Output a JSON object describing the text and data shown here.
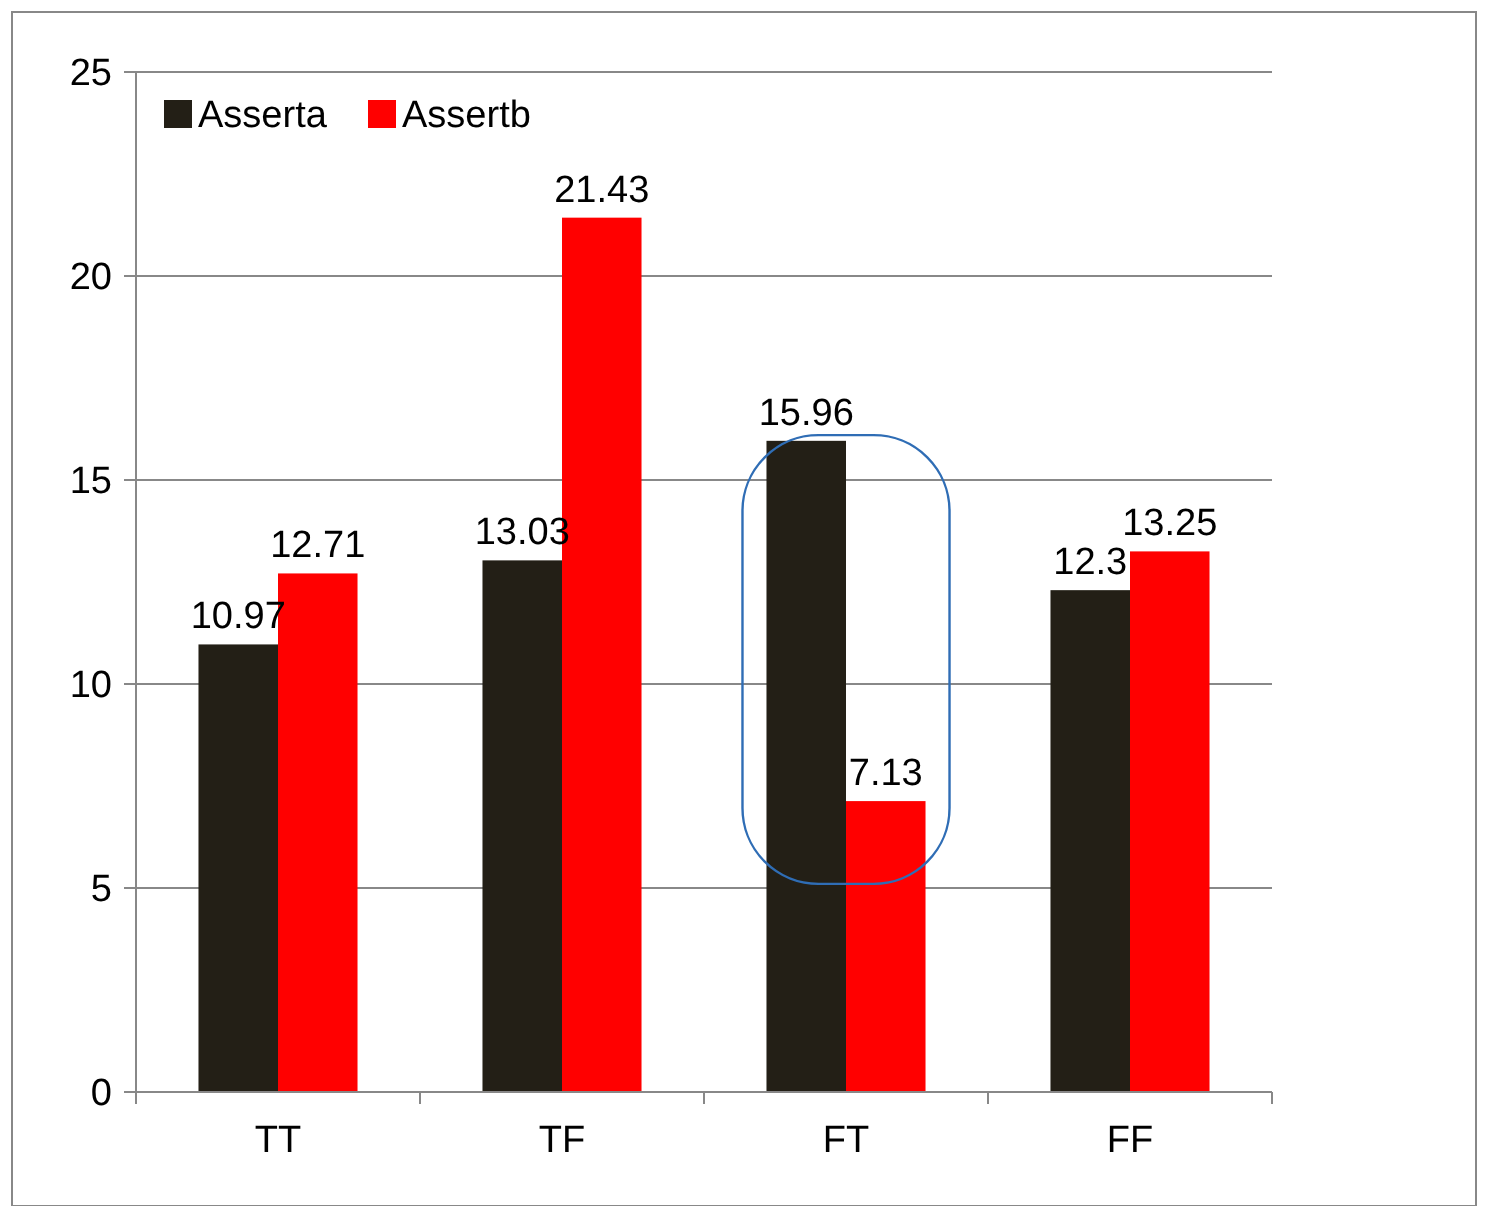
{
  "chart_data": {
    "type": "bar",
    "categories": [
      "TT",
      "TF",
      "FT",
      "FF"
    ],
    "series": [
      {
        "name": "Asserta",
        "color": "#231f16",
        "values": [
          10.97,
          13.03,
          15.96,
          12.3
        ]
      },
      {
        "name": "Assertb",
        "color": "#ff0000",
        "values": [
          12.71,
          21.43,
          7.13,
          13.25
        ]
      }
    ],
    "ylim": [
      0,
      25
    ],
    "yticks": [
      0,
      5,
      10,
      15,
      20,
      25
    ],
    "grid": "y",
    "legend": "top left",
    "data_labels": true
  }
}
